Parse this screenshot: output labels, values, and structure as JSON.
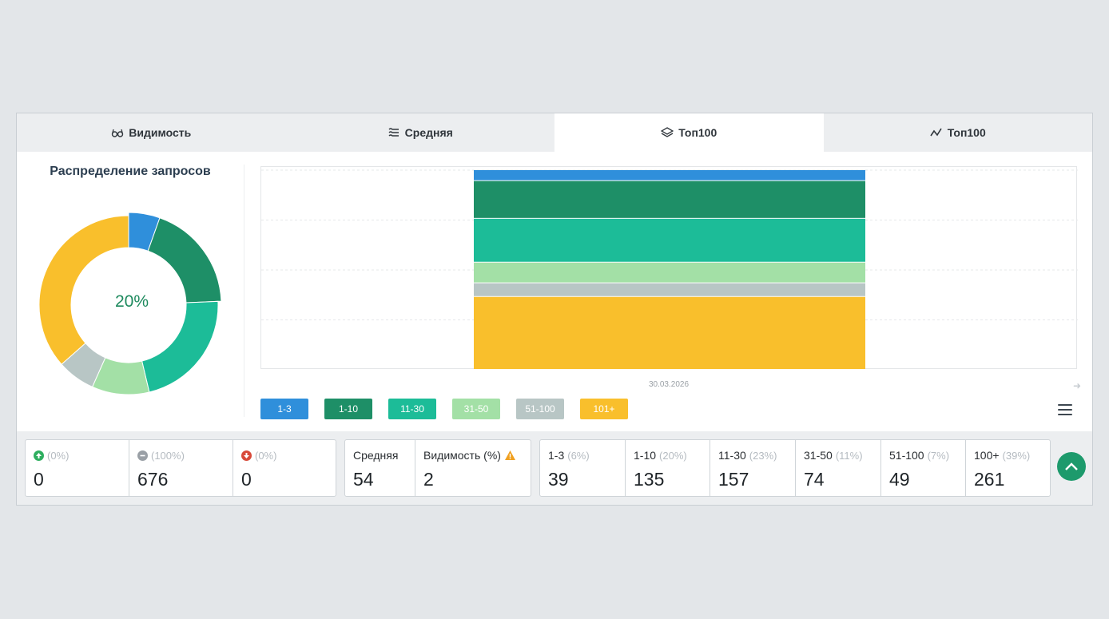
{
  "tabs": [
    {
      "label": "Видимость",
      "icon": "glasses-icon"
    },
    {
      "label": "Средняя",
      "icon": "lines-icon"
    },
    {
      "label": "Топ100",
      "icon": "layers-icon",
      "active": true
    },
    {
      "label": "Топ100",
      "icon": "line-chart-icon"
    }
  ],
  "distribution": {
    "title": "Распределение запросов",
    "center_value": "20%"
  },
  "chart_data": {
    "type": "bar",
    "stacked": true,
    "categories": [
      "30.03.2026"
    ],
    "series": [
      {
        "name": "1-3",
        "values": [
          39
        ],
        "color": "#2f8fdb"
      },
      {
        "name": "1-10",
        "values": [
          135
        ],
        "color": "#1e8f67"
      },
      {
        "name": "11-30",
        "values": [
          157
        ],
        "color": "#1cbc98"
      },
      {
        "name": "31-50",
        "values": [
          74
        ],
        "color": "#a3e0a6"
      },
      {
        "name": "51-100",
        "values": [
          49
        ],
        "color": "#b8c6c5"
      },
      {
        "name": "101+",
        "values": [
          261
        ],
        "color": "#f9bf2c"
      }
    ],
    "grid": true
  },
  "x_axis_label": "30.03.2026",
  "legend": [
    {
      "label": "1-3",
      "color": "#2f8fdb"
    },
    {
      "label": "1-10",
      "color": "#1e8f67"
    },
    {
      "label": "11-30",
      "color": "#1cbc98"
    },
    {
      "label": "31-50",
      "color": "#a3e0a6"
    },
    {
      "label": "51-100",
      "color": "#b8c6c5"
    },
    {
      "label": "101+",
      "color": "#f9bf2c"
    }
  ],
  "stats": {
    "changes": [
      {
        "icon": "arrow-up-circle-icon",
        "pct": "(0%)",
        "value": "0",
        "color": "#2eae5f"
      },
      {
        "icon": "minus-circle-icon",
        "pct": "(100%)",
        "value": "676",
        "color": "#9aa0a6"
      },
      {
        "icon": "arrow-down-circle-icon",
        "pct": "(0%)",
        "value": "0",
        "color": "#d84a3a"
      }
    ],
    "summary": [
      {
        "label": "Средняя",
        "value": "54"
      },
      {
        "label": "Видимость (%)",
        "value": "2",
        "icon": "warning-icon"
      }
    ],
    "positions": [
      {
        "label": "1-3",
        "pct": "(6%)",
        "value": "39"
      },
      {
        "label": "1-10",
        "pct": "(20%)",
        "value": "135"
      },
      {
        "label": "11-30",
        "pct": "(23%)",
        "value": "157"
      },
      {
        "label": "31-50",
        "pct": "(11%)",
        "value": "74"
      },
      {
        "label": "51-100",
        "pct": "(7%)",
        "value": "49"
      },
      {
        "label": "100+",
        "pct": "(39%)",
        "value": "261"
      }
    ]
  }
}
